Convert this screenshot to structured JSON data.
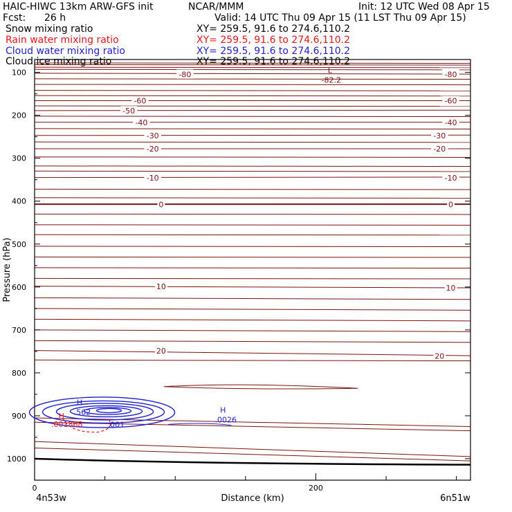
{
  "header": {
    "model": "HAIC-HIWC 13km ARW-GFS init",
    "org": "NCAR/MMM",
    "init": "Init: 12 UTC Wed 08 Apr 15",
    "fcst_label": "Fcst:",
    "fcst_value": "26 h",
    "valid": "Valid: 14 UTC Thu 09 Apr 15 (11 LST Thu 09 Apr 15)"
  },
  "fields": [
    {
      "label": "Snow mixing ratio",
      "xy": "XY= 259.5, 91.6 to 274.6,110.2",
      "color": "#000000"
    },
    {
      "label": "Rain water mixing ratio",
      "xy": "XY= 259.5, 91.6 to 274.6,110.2",
      "color": "#e8141e"
    },
    {
      "label": "Cloud water mixing ratio",
      "xy": "XY= 259.5, 91.6 to 274.6,110.2",
      "color": "#1e1ed2"
    },
    {
      "label": "Cloud ice mixing ratio",
      "xy": "XY= 259.5, 91.6 to 274.6,110.2",
      "color": "#000000"
    }
  ],
  "chart_data": {
    "type": "line",
    "title": "",
    "xlabel": "Distance (km)",
    "ylabel": "Pressure (hPa)",
    "xlim": [
      0,
      310
    ],
    "ylim": [
      1050,
      70
    ],
    "x_ticks": [
      0,
      200
    ],
    "y_ticks": [
      100,
      200,
      300,
      400,
      500,
      600,
      700,
      800,
      900,
      1000
    ],
    "x_endpoints": {
      "left": "4n53w",
      "right": "6n51w"
    },
    "colors": {
      "temperature": "#7a1010",
      "cloud_water": "#1e1ed2",
      "rain": "#e8141e",
      "ground": "#000000"
    },
    "temperature_isotherms": [
      {
        "label": "-80",
        "y": [
          102,
          104
        ]
      },
      {
        "label": "-60",
        "y": [
          166,
          166
        ]
      },
      {
        "label": "-50",
        "y": [
          189,
          188
        ]
      },
      {
        "label": "-40",
        "y": [
          216,
          216
        ]
      },
      {
        "label": "-30",
        "y": [
          247,
          246
        ]
      },
      {
        "label": "-20",
        "y": [
          278,
          278
        ]
      },
      {
        "label": "-10",
        "y": [
          345,
          344
        ]
      },
      {
        "label": "0",
        "y": [
          407,
          407
        ]
      },
      {
        "label": "10",
        "y": [
          598,
          602
        ]
      },
      {
        "label": "20",
        "y": [
          748,
          760
        ]
      }
    ],
    "temperature_annotations": [
      {
        "label": "-80",
        "x": 107,
        "p": 104
      },
      {
        "label": "-80",
        "x": 296,
        "p": 104
      },
      {
        "label": "-60",
        "x": 75,
        "p": 166
      },
      {
        "label": "-60",
        "x": 296,
        "p": 166
      },
      {
        "label": "-50",
        "x": 67,
        "p": 189
      },
      {
        "label": "-40",
        "x": 76,
        "p": 216
      },
      {
        "label": "-40",
        "x": 296,
        "p": 216
      },
      {
        "label": "-30",
        "x": 84,
        "p": 247
      },
      {
        "label": "-30",
        "x": 288,
        "p": 247
      },
      {
        "label": "-20",
        "x": 84,
        "p": 278
      },
      {
        "label": "-20",
        "x": 288,
        "p": 278
      },
      {
        "label": "-10",
        "x": 84,
        "p": 345
      },
      {
        "label": "-10",
        "x": 296,
        "p": 345
      },
      {
        "label": "0",
        "x": 90,
        "p": 407
      },
      {
        "label": "0",
        "x": 296,
        "p": 407
      },
      {
        "label": "10",
        "x": 90,
        "p": 598
      },
      {
        "label": "10",
        "x": 296,
        "p": 602
      },
      {
        "label": "20",
        "x": 90,
        "p": 748
      },
      {
        "label": "20",
        "x": 288,
        "p": 760
      }
    ],
    "temperature_extremes": [
      {
        "kind": "L",
        "value": "-82.2",
        "x": 210,
        "p": 98
      }
    ],
    "cloud_water_extremes": [
      {
        "kind": "H",
        "value": ".562",
        "x": 32,
        "p": 888
      },
      {
        "kind": "H",
        "value": ".0026",
        "x": 134,
        "p": 906
      }
    ],
    "cloud_water_labels": [
      {
        "label": ".001",
        "x": 58,
        "p": 920
      }
    ],
    "rain_extremes": [
      {
        "kind": "H",
        "value": ".001868",
        "x": 22,
        "p": 900
      }
    ],
    "ground_pressure": [
      1000,
      1014
    ]
  }
}
